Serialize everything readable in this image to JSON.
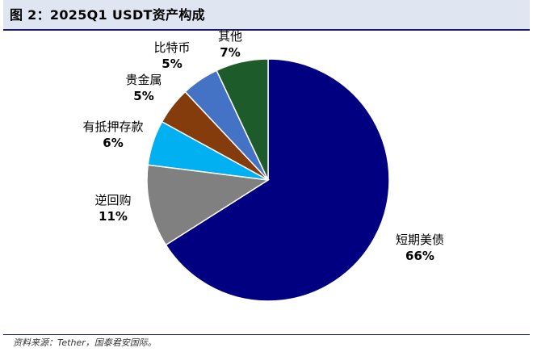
{
  "title": "图 2：2025Q1 USDT资产构成",
  "source": "资料来源：Tether，国泰君安国际。",
  "chart_data": {
    "type": "pie",
    "title": "图 2：2025Q1 USDT资产构成",
    "slices": [
      {
        "name": "短期美债",
        "value": 66,
        "label": "66%",
        "color": "#000080"
      },
      {
        "name": "逆回购",
        "value": 11,
        "label": "11%",
        "color": "#808080"
      },
      {
        "name": "有抵押存款",
        "value": 6,
        "label": "6%",
        "color": "#00B0F0"
      },
      {
        "name": "贵金属",
        "value": 5,
        "label": "5%",
        "color": "#843C0C"
      },
      {
        "name": "比特币",
        "value": 5,
        "label": "5%",
        "color": "#4472C4"
      },
      {
        "name": "其他",
        "value": 7,
        "label": "7%",
        "color": "#1E5B2A"
      }
    ]
  }
}
